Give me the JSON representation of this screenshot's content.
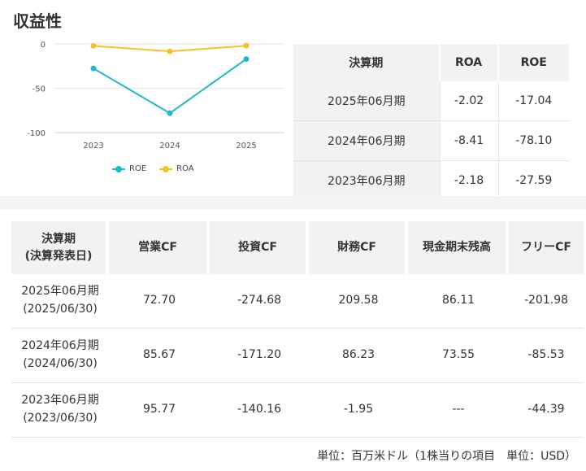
{
  "section_title": "収益性",
  "chart_data": {
    "type": "line",
    "categories": [
      "2023",
      "2024",
      "2025"
    ],
    "series": [
      {
        "name": "ROE",
        "color": "#1fb8cf",
        "values": [
          -27.59,
          -78.1,
          -17.04
        ]
      },
      {
        "name": "ROA",
        "color": "#f5c22b",
        "values": [
          -2.18,
          -8.41,
          -2.02
        ]
      }
    ],
    "yticks": [
      "0",
      "-50",
      "-100"
    ],
    "ylim": [
      -100,
      0
    ],
    "grid": true,
    "legend_position": "bottom"
  },
  "ratio_table": {
    "headers": [
      "決算期",
      "ROA",
      "ROE"
    ],
    "rows": [
      {
        "period": "2025年06月期",
        "roa": "-2.02",
        "roe": "-17.04"
      },
      {
        "period": "2024年06月期",
        "roa": "-8.41",
        "roe": "-78.10"
      },
      {
        "period": "2023年06月期",
        "roa": "-2.18",
        "roe": "-27.59"
      }
    ]
  },
  "cf_table": {
    "headers": {
      "period_line1": "決算期",
      "period_line2": "(決算発表日)",
      "operating": "営業CF",
      "investing": "投資CF",
      "financing": "財務CF",
      "cash": "現金期末残高",
      "free": "フリーCF"
    },
    "rows": [
      {
        "period": "2025年06月期",
        "date": "(2025/06/30)",
        "operating": "72.70",
        "investing": "-274.68",
        "financing": "209.58",
        "cash": "86.11",
        "free": "-201.98"
      },
      {
        "period": "2024年06月期",
        "date": "(2024/06/30)",
        "operating": "85.67",
        "investing": "-171.20",
        "financing": "86.23",
        "cash": "73.55",
        "free": "-85.53"
      },
      {
        "period": "2023年06月期",
        "date": "(2023/06/30)",
        "operating": "95.77",
        "investing": "-140.16",
        "financing": "-1.95",
        "cash": "---",
        "free": "-44.39"
      }
    ]
  },
  "footnote": "単位：百万米ドル（1株当りの項目　単位：USD）"
}
